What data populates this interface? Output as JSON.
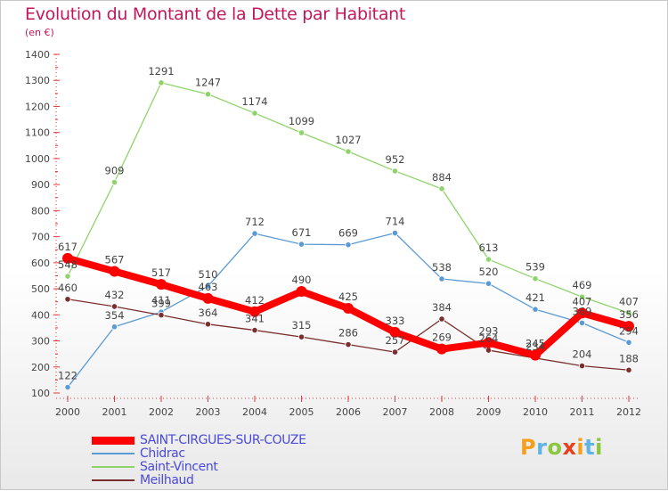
{
  "header": {
    "title": "Evolution du Montant de la Dette par Habitant",
    "unit": "(en €)"
  },
  "brand": {
    "letters": [
      "P",
      "r",
      "o",
      "x",
      "i",
      "t",
      "i"
    ],
    "colors": [
      "#f4a01c",
      "#5fb4e6",
      "#8cc63f",
      "#e8401c",
      "#f4a01c",
      "#5fb4e6",
      "#8cc63f"
    ]
  },
  "chart_data": {
    "type": "line",
    "title": "Evolution du Montant de la Dette par Habitant",
    "ylabel": "(en €)",
    "xlabel": "",
    "x": [
      "2000",
      "2001",
      "2002",
      "2003",
      "2004",
      "2005",
      "2006",
      "2007",
      "2008",
      "2009",
      "2010",
      "2011",
      "2012"
    ],
    "ylim": [
      100,
      1400
    ],
    "yticks": [
      100,
      200,
      300,
      400,
      500,
      600,
      700,
      800,
      900,
      1000,
      1100,
      1200,
      1300,
      1400
    ],
    "grid": false,
    "legend_position": "bottom-left",
    "series": [
      {
        "name": "SAINT-CIRGUES-SUR-COUZE",
        "color": "#ff0000",
        "values": [
          617,
          567,
          517,
          463,
          412,
          490,
          425,
          333,
          269,
          293,
          245,
          407,
          356
        ],
        "labels": [
          "617",
          "567",
          "517",
          "463",
          "412",
          "490",
          "425",
          "333",
          "269",
          "293",
          "245",
          "407",
          "356"
        ]
      },
      {
        "name": "Chidrac",
        "color": "#5b9bd5",
        "values": [
          122,
          354,
          411,
          510,
          712,
          671,
          669,
          714,
          538,
          520,
          421,
          369,
          294
        ],
        "labels": [
          "122",
          "354",
          "411",
          "510",
          "712",
          "671",
          "669",
          "714",
          "538",
          "520",
          "421",
          "369",
          "294"
        ]
      },
      {
        "name": "Saint-Vincent",
        "color": "#8fd46a",
        "values": [
          548,
          909,
          1291,
          1247,
          1174,
          1099,
          1027,
          952,
          884,
          613,
          539,
          469,
          407
        ],
        "labels": [
          "548",
          "909",
          "1291",
          "1247",
          "1174",
          "1099",
          "1027",
          "952",
          "884",
          "613",
          "539",
          "469",
          "407"
        ]
      },
      {
        "name": "Meilhaud",
        "color": "#7b2e2e",
        "values": [
          460,
          432,
          399,
          364,
          341,
          315,
          286,
          257,
          384,
          264,
          234,
          204,
          188
        ],
        "labels": [
          "460",
          "432",
          "399",
          "364",
          "341",
          "315",
          "286",
          "257",
          "384",
          "264",
          "234",
          "204",
          "188"
        ]
      }
    ]
  }
}
